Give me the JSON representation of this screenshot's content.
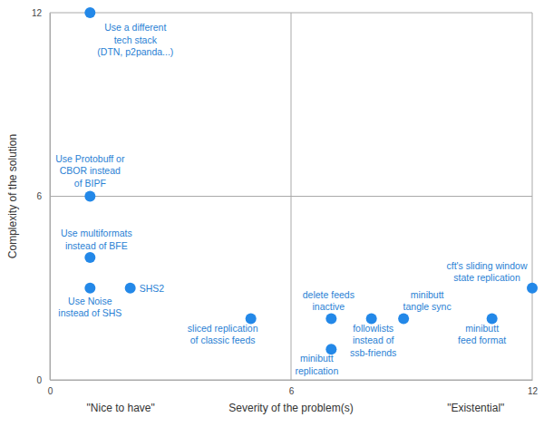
{
  "chart_data": {
    "type": "scatter",
    "x_label": "Severity of the problem(s)",
    "y_label": "Complexity of the solution",
    "annotations": [
      "\"Nice to have\"",
      "\"Existential\""
    ],
    "x": [
      1,
      1,
      1,
      1,
      2,
      5,
      7,
      7,
      8,
      8.8,
      11,
      12
    ],
    "values": [
      12,
      6,
      4,
      3,
      3,
      2,
      2,
      1,
      2,
      2,
      2,
      3
    ],
    "point_labels": [
      [
        "Use a different",
        "tech stack",
        "(DTN, p2panda...)"
      ],
      [
        "Use Protobuff or",
        "CBOR instead",
        "of BIPF"
      ],
      [
        "Use multiformats",
        "instead of BFE"
      ],
      [
        "Use Noise",
        "instead of SHS"
      ],
      [
        "SHS2"
      ],
      [
        "sliced replication",
        "of classic feeds"
      ],
      [
        "delete feeds",
        "inactive"
      ],
      [
        "minibutt",
        "replication"
      ],
      [
        "followlists",
        "instead of",
        "ssb-friends"
      ],
      [
        "minibutt",
        "tangle sync"
      ],
      [
        "minibutt",
        "feed format"
      ],
      [
        "cft's sliding window",
        "state replication"
      ]
    ],
    "color": "#2388e8",
    "xlim": [
      0,
      12
    ],
    "ylim": [
      0,
      12
    ],
    "xticks": [
      0,
      6,
      12
    ],
    "yticks": [
      0,
      6,
      12
    ],
    "grid": true
  }
}
